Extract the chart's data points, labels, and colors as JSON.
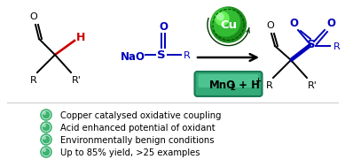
{
  "bg_color": "#ffffff",
  "bullet_color": "#3cb371",
  "bullet_points": [
    "Copper catalysed oxidative coupling",
    "Acid enhanced potential of oxidant",
    "Environmentally benign conditions",
    "Up to 85% yield, >25 examples"
  ],
  "blue_color": "#0000bb",
  "red_color": "#cc0000",
  "black_color": "#000000",
  "green_dark": "#1a8c1a",
  "green_mid": "#33bb33",
  "green_light": "#66ee55",
  "green_pale": "#aaffaa",
  "teal_dark": "#1a7a55",
  "teal_mid": "#33aa77",
  "teal_light": "#66ddaa",
  "struct_lw": 1.4,
  "fig_w": 3.89,
  "fig_h": 1.89,
  "fig_dpi": 100
}
